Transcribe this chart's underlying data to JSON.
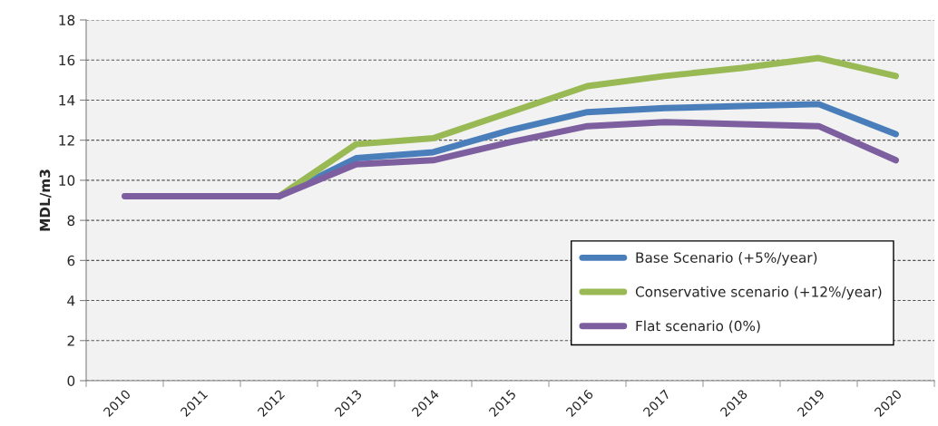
{
  "chart_data": {
    "type": "line",
    "ylabel": "MDL/m3",
    "categories": [
      "2010",
      "2011",
      "2012",
      "2013",
      "2014",
      "2015",
      "2016",
      "2017",
      "2018",
      "2019",
      "2020"
    ],
    "series": [
      {
        "name": "Base Scenario (+5%/year)",
        "color": "#4a7ebb",
        "values": [
          null,
          null,
          9.2,
          11.1,
          11.4,
          12.5,
          13.4,
          13.6,
          13.7,
          13.8,
          12.3
        ]
      },
      {
        "name": "Conservative scenario (+12%/year)",
        "color": "#98b954",
        "values": [
          null,
          null,
          9.2,
          11.8,
          12.1,
          13.4,
          14.7,
          15.2,
          15.6,
          16.1,
          15.2
        ]
      },
      {
        "name": "Flat scenario (0%)",
        "color": "#7d5fa0",
        "values": [
          9.2,
          9.2,
          9.2,
          10.8,
          11.0,
          11.9,
          12.7,
          12.9,
          12.8,
          12.7,
          11.0
        ]
      }
    ],
    "ylim": [
      0,
      18
    ],
    "yticks": [
      0,
      2,
      4,
      6,
      8,
      10,
      12,
      14,
      16,
      18
    ],
    "grid": "y",
    "legend": "bottom right",
    "marker": "none",
    "line_style": "solid"
  }
}
